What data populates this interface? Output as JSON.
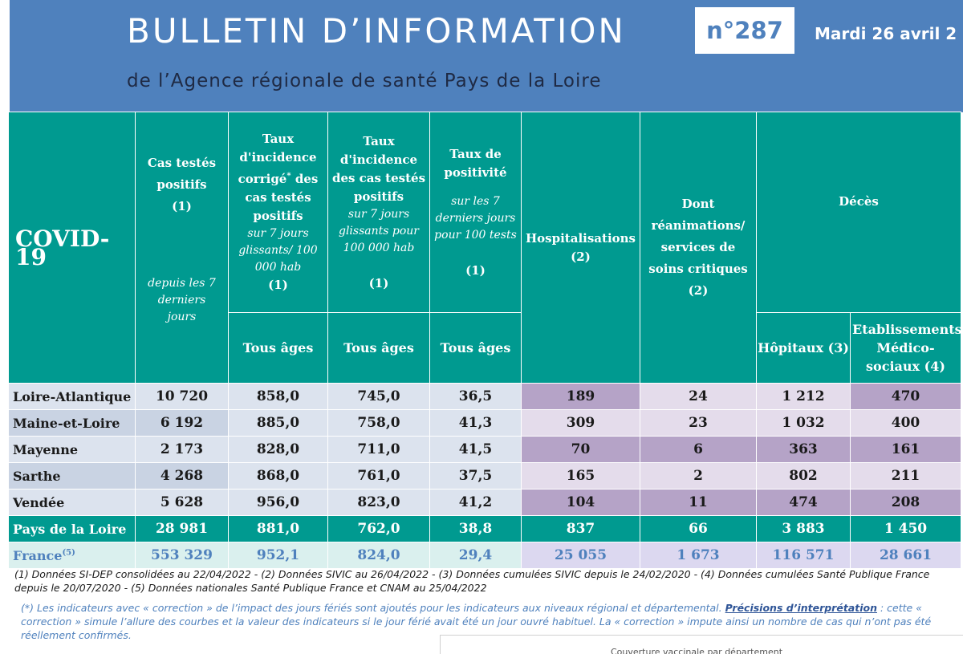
{
  "banner": {
    "title": "BULLETIN D’INFORMATION",
    "issue": "n°287",
    "date": "Mardi 26 avril 2",
    "subtitle": "de l’Agence régionale de santé Pays de la Loire"
  },
  "header": {
    "covid": "COVID-19",
    "cas": {
      "title": "Cas testés positifs",
      "ref": "(1)",
      "note": "depuis les 7 derniers jours"
    },
    "taux_corrige": {
      "title_a": "Taux d'incidence corrigé",
      "star": "*",
      "title_b": "des cas testés positifs",
      "note": "sur 7 jours glissants/ 100 000 hab",
      "ref": "(1)"
    },
    "taux_incidence": {
      "title": "Taux d'incidence des cas testés positifs",
      "note": "sur 7 jours glissants pour 100 000 hab",
      "ref": "(1)"
    },
    "taux_positivite": {
      "title": "Taux de positivité",
      "note": "sur les 7 derniers jours pour 100 tests",
      "ref": "(1)"
    },
    "hospitalisations": {
      "title": "Hospitalisations",
      "ref": "(2)"
    },
    "reanimations": {
      "title": "Dont réanimations/ services de soins critiques",
      "ref": "(2)"
    },
    "deces": "Décès",
    "tous_ages": "Tous âges",
    "hopitaux": "Hôpitaux (3)",
    "etablissements": "Etablissements Médico-sociaux (4)"
  },
  "rows": [
    {
      "name": "Loire-Atlantique",
      "cas": "10 720",
      "tc": "858,0",
      "ti": "745,0",
      "tp": "36,5",
      "hosp": "189",
      "rea": "24",
      "dh": "1 212",
      "dem": "470"
    },
    {
      "name": "Maine-et-Loire",
      "cas": "6 192",
      "tc": "885,0",
      "ti": "758,0",
      "tp": "41,3",
      "hosp": "309",
      "rea": "23",
      "dh": "1 032",
      "dem": "400"
    },
    {
      "name": "Mayenne",
      "cas": "2 173",
      "tc": "828,0",
      "ti": "711,0",
      "tp": "41,5",
      "hosp": "70",
      "rea": "6",
      "dh": "363",
      "dem": "161"
    },
    {
      "name": "Sarthe",
      "cas": "4 268",
      "tc": "868,0",
      "ti": "761,0",
      "tp": "37,5",
      "hosp": "165",
      "rea": "2",
      "dh": "802",
      "dem": "211"
    },
    {
      "name": "Vendée",
      "cas": "5 628",
      "tc": "956,0",
      "ti": "823,0",
      "tp": "41,2",
      "hosp": "104",
      "rea": "11",
      "dh": "474",
      "dem": "208"
    }
  ],
  "region": {
    "name": "Pays de la Loire",
    "cas": "28 981",
    "tc": "881,0",
    "ti": "762,0",
    "tp": "38,8",
    "hosp": "837",
    "rea": "66",
    "dh": "3 883",
    "dem": "1 450"
  },
  "france": {
    "name": "France",
    "sup": "(5)",
    "cas": "553 329",
    "tc": "952,1",
    "ti": "824,0",
    "tp": "29,4",
    "hosp": "25 055",
    "rea": "1 673",
    "dh": "116 571",
    "dem": "28 661"
  },
  "notes": {
    "sources": "(1) Données SI-DEP consolidées au 22/04/2022 - (2) Données SIVIC au 26/04/2022 - (3) Données cumulées SIVIC depuis le 24/02/2020 - (4) Données cumulées Santé Publique France depuis le 20/07/2020 - (5) Données nationales Santé Publique France et CNAM au 25/04/2022",
    "star_text_a": "(*) Les indicateurs avec « correction » de l’impact des jours fériés sont ajoutés pour les indicateurs aux niveaux régional et départemental.",
    "link": "Précisions d’interprétation",
    "star_text_b": ": cette « correction » simule l’allure des courbes et la valeur des indicateurs si le jour férié avait été un jour ouvré habituel. La « correction » impute ainsi un nombre de cas qui n’ont pas été réellement confirmés."
  },
  "bottom_panel": "Couverture vaccinale par département"
}
